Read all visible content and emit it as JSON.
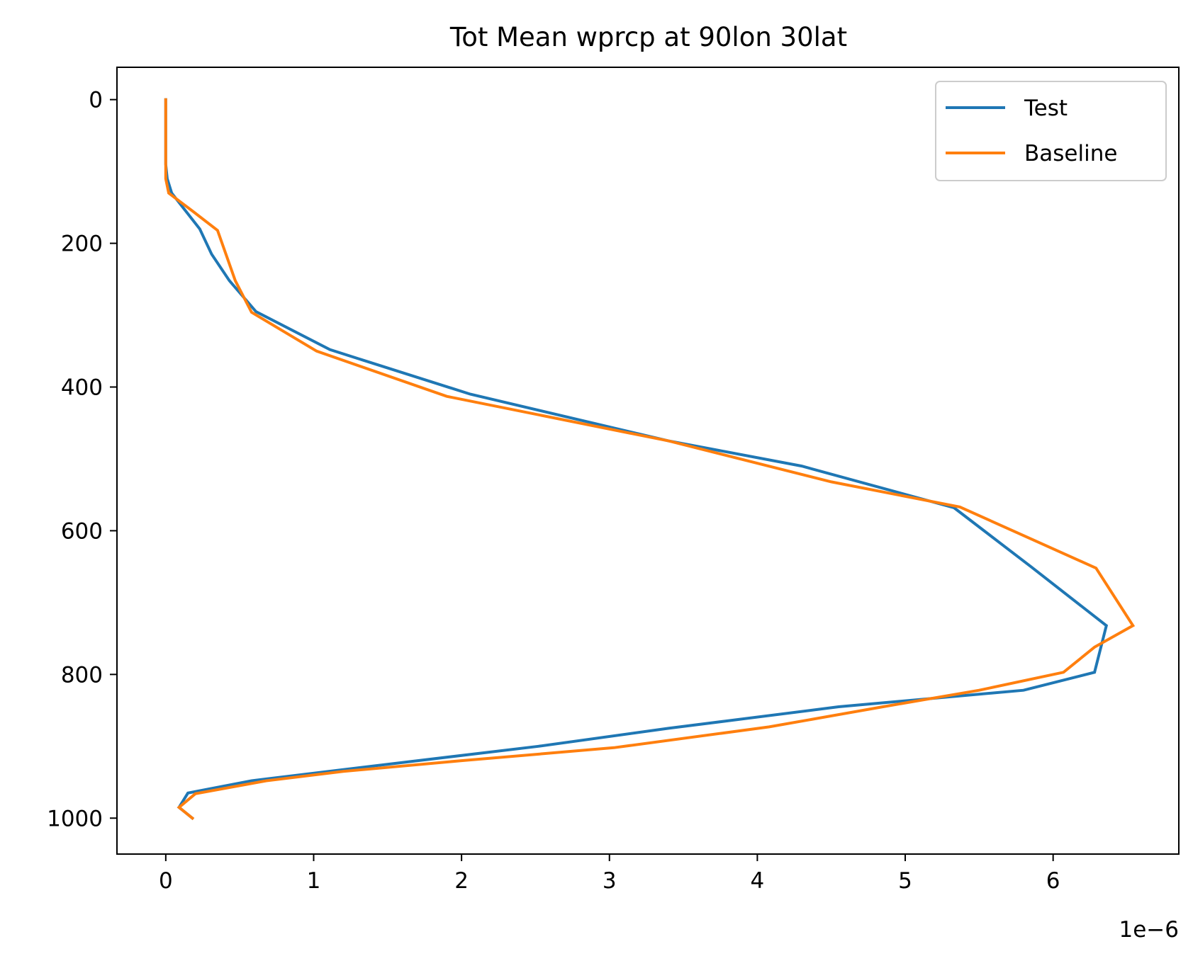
{
  "chart_data": {
    "type": "line",
    "title": "Tot Mean wprcp at 90lon 30lat",
    "xlabel": "",
    "ylabel": "",
    "x_offset_label": "1e−6",
    "xlim": [
      -0.33,
      6.85
    ],
    "ylim": [
      1050,
      -45
    ],
    "y_inverted": true,
    "x_ticks": [
      0,
      1,
      2,
      3,
      4,
      5,
      6
    ],
    "y_ticks": [
      0,
      200,
      400,
      600,
      800,
      1000
    ],
    "legend_position": "top-right",
    "grid": false,
    "series": [
      {
        "name": "Test",
        "color": "#1f77b4",
        "x": [
          0,
          0,
          0,
          0.01,
          0.04,
          0.23,
          0.31,
          0.43,
          0.61,
          1.11,
          2.06,
          3.4,
          4.3,
          5.33,
          5.85,
          6.36,
          6.28,
          5.8,
          4.55,
          3.4,
          2.52,
          1.3,
          0.58,
          0.15,
          0.09,
          0.18
        ],
        "y": [
          0,
          50,
          90,
          110,
          130,
          180,
          215,
          252,
          295,
          348,
          410,
          475,
          510,
          568,
          650,
          732,
          797,
          822,
          845,
          875,
          900,
          930,
          948,
          965,
          985,
          1000
        ]
      },
      {
        "name": "Baseline",
        "color": "#ff7f0e",
        "x": [
          0,
          0,
          0,
          0.02,
          0.18,
          0.35,
          0.47,
          0.58,
          1.02,
          1.9,
          3.4,
          4.5,
          5.37,
          6.29,
          6.54,
          6.28,
          6.07,
          5.5,
          4.85,
          4.08,
          3.03,
          2.0,
          1.2,
          0.68,
          0.2,
          0.09,
          0.18
        ],
        "y": [
          0,
          50,
          110,
          130,
          155,
          182,
          252,
          296,
          350,
          413,
          475,
          532,
          567,
          652,
          732,
          762,
          797,
          822,
          845,
          873,
          902,
          920,
          935,
          948,
          966,
          985,
          1000
        ]
      }
    ]
  }
}
